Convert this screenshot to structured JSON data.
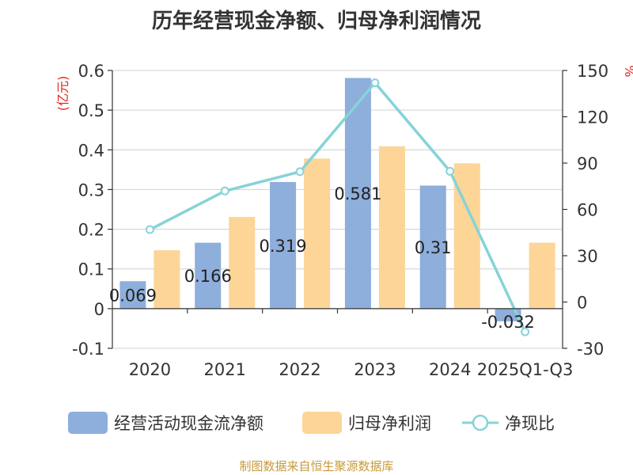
{
  "chart_data": {
    "type": "bar",
    "title": "历年经营现金净额、归母净利润情况",
    "categories": [
      "2020",
      "2021",
      "2022",
      "2023",
      "2024",
      "2025Q1-Q3"
    ],
    "left_axis": {
      "unit": "(亿元)",
      "ylim": [
        -0.1,
        0.6
      ],
      "ticks": [
        "-0.1",
        "0",
        "0.1",
        "0.2",
        "0.3",
        "0.4",
        "0.5",
        "0.6"
      ]
    },
    "right_axis": {
      "unit": "%",
      "ylim": [
        -30,
        150
      ],
      "ticks": [
        "-30",
        "0",
        "30",
        "60",
        "90",
        "120",
        "150"
      ]
    },
    "series": [
      {
        "name": "经营活动现金流净额",
        "type": "bar",
        "axis": "left",
        "color": "#8eaedb",
        "values": [
          0.069,
          0.166,
          0.319,
          0.581,
          0.31,
          -0.032
        ],
        "labels": [
          "0.069",
          "0.166",
          "0.319",
          "0.581",
          "0.31",
          "-0.032"
        ]
      },
      {
        "name": "归母净利润",
        "type": "bar",
        "axis": "left",
        "color": "#fcd597",
        "values": [
          0.147,
          0.231,
          0.378,
          0.409,
          0.366,
          0.166
        ]
      },
      {
        "name": "净现比",
        "type": "line",
        "axis": "right",
        "color": "#86d3d8",
        "values": [
          46.9,
          71.9,
          84.4,
          142.0,
          84.7,
          -19.3
        ]
      }
    ],
    "grid": true,
    "legend_position": "bottom"
  },
  "source_text": "制图数据来自恒生聚源数据库"
}
